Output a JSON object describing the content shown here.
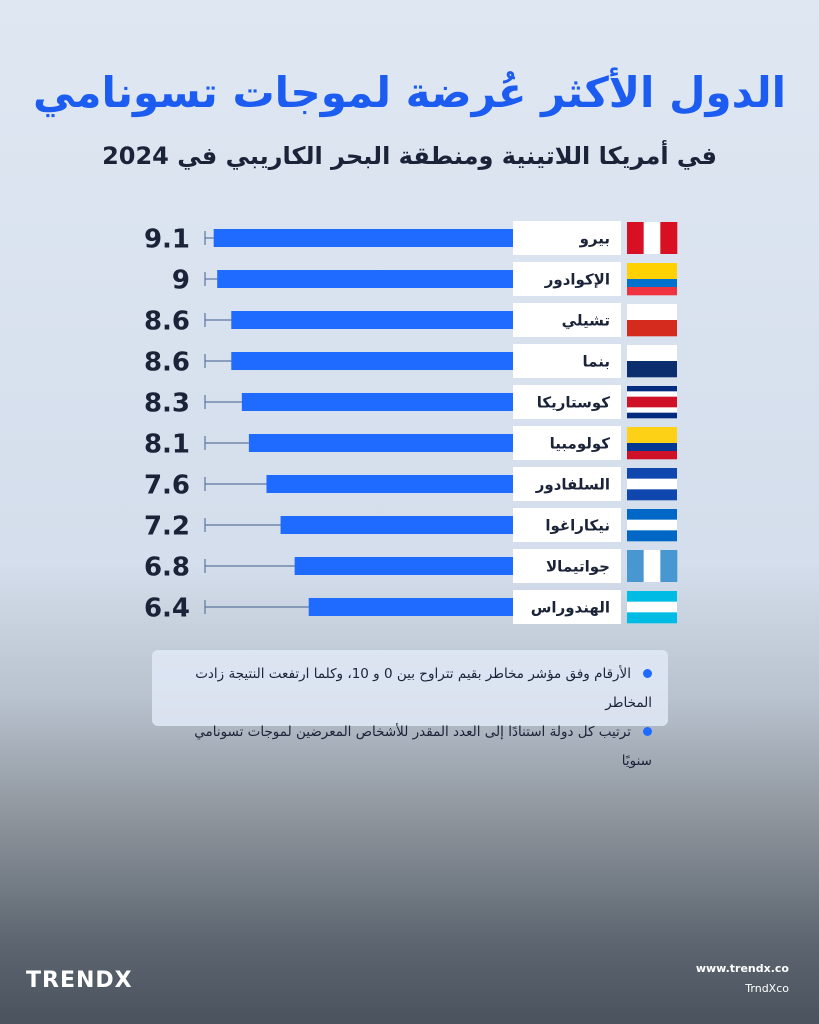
{
  "chart_data": {
    "type": "hbar",
    "title": "الدول الأكثر عُرضة لموجات تسونامي",
    "subtitle": "في أمريكا اللاتينية ومنطقة البحر الكاريبي في 2024",
    "categories": [
      "بيرو",
      "الإكوادور",
      "تشيلي",
      "بنما",
      "كوستاريكا",
      "كولومبيا",
      "السلفادور",
      "نيكاراغوا",
      "جواتيمالا",
      "الهندوراس"
    ],
    "values": [
      9.1,
      9,
      8.6,
      8.6,
      8.3,
      8.1,
      7.6,
      7.2,
      6.8,
      6.4
    ],
    "color": "#1f6bff",
    "xlim": [
      0,
      10
    ],
    "notes": [
      "الأرقام وفق مؤشر مخاطر بقيم تتراوح بين 0 و 10، وكلما ارتفعت النتيجة زادت المخاطر",
      "ترتيب كل دولة استنادًا إلى العدد المقدر للأشخاص المعرضين لموجات تسونامي سنويًا"
    ]
  },
  "footer": {
    "brand": "TRENDX",
    "website": "www.trendx.co",
    "handle": "TrndXco"
  }
}
